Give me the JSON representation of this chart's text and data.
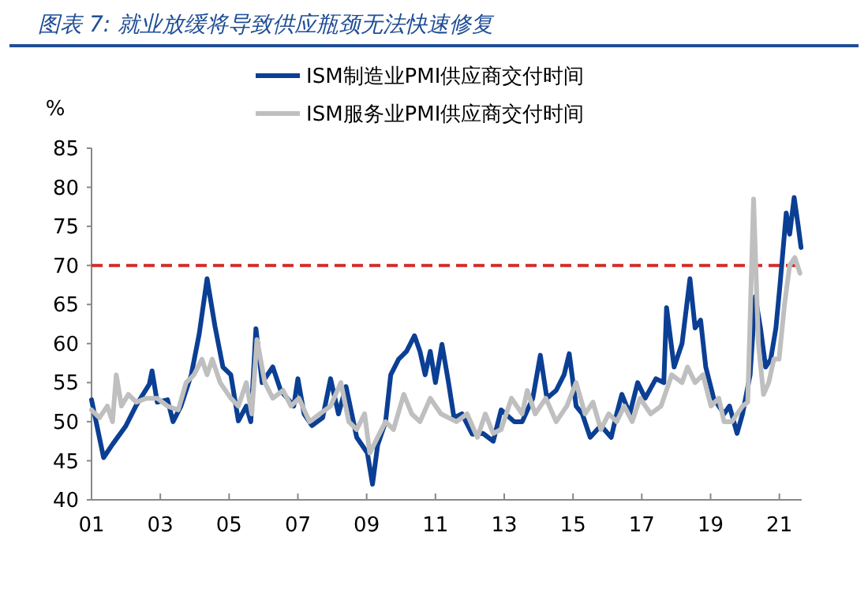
{
  "chart_data": {
    "type": "line",
    "title": "图表 7: 就业放缓将导致供应瓶颈无法快速修复",
    "ylabel": "%",
    "legend": "top",
    "grid": false,
    "line_style": "solid",
    "xlim": [
      2001,
      2021.65
    ],
    "xticks": [
      {
        "value": 2001,
        "label": "01"
      },
      {
        "value": 2003,
        "label": "03"
      },
      {
        "value": 2005,
        "label": "05"
      },
      {
        "value": 2007,
        "label": "07"
      },
      {
        "value": 2009,
        "label": "09"
      },
      {
        "value": 2011,
        "label": "11"
      },
      {
        "value": 2013,
        "label": "13"
      },
      {
        "value": 2015,
        "label": "15"
      },
      {
        "value": 2017,
        "label": "17"
      },
      {
        "value": 2019,
        "label": "19"
      },
      {
        "value": 2021,
        "label": "21"
      }
    ],
    "ylim": [
      40,
      85
    ],
    "yticks": [
      40,
      45,
      50,
      55,
      60,
      65,
      70,
      75,
      80,
      85
    ],
    "ref_lines": [
      {
        "axis": "y",
        "value": 70,
        "color": "#d42a2a",
        "line_style": "dashed"
      }
    ],
    "series": [
      {
        "name": "ISM制造业PMI供应商交付时间",
        "color": "#0b3f94",
        "x": [
          2001.0,
          2001.35,
          2001.61,
          2001.99,
          2002.3,
          2002.68,
          2002.76,
          2002.91,
          2003.21,
          2003.37,
          2003.6,
          2003.9,
          2004.13,
          2004.36,
          2004.59,
          2004.82,
          2005.05,
          2005.27,
          2005.5,
          2005.63,
          2005.78,
          2005.96,
          2006.27,
          2006.5,
          2006.88,
          2007.0,
          2007.18,
          2007.41,
          2007.72,
          2007.95,
          2008.18,
          2008.4,
          2008.71,
          2009.02,
          2009.17,
          2009.32,
          2009.55,
          2009.7,
          2009.93,
          2010.16,
          2010.39,
          2010.55,
          2010.7,
          2010.85,
          2011.0,
          2011.19,
          2011.38,
          2011.54,
          2011.77,
          2012.07,
          2012.38,
          2012.68,
          2012.91,
          2013.29,
          2013.52,
          2013.83,
          2014.05,
          2014.24,
          2014.51,
          2014.74,
          2014.89,
          2015.09,
          2015.27,
          2015.5,
          2015.81,
          2016.11,
          2016.27,
          2016.42,
          2016.65,
          2016.88,
          2017.1,
          2017.41,
          2017.64,
          2017.72,
          2017.94,
          2018.17,
          2018.4,
          2018.55,
          2018.71,
          2018.86,
          2019.09,
          2019.39,
          2019.55,
          2019.77,
          2019.93,
          2020.15,
          2020.3,
          2020.45,
          2020.6,
          2020.75,
          2020.9,
          2021.02,
          2021.2,
          2021.3,
          2021.43,
          2021.55,
          2021.63
        ],
        "values": [
          52.8,
          45.4,
          47.1,
          49.4,
          52.1,
          54.8,
          56.5,
          52.5,
          52.8,
          50,
          52,
          56,
          61.2,
          68.3,
          62.2,
          57,
          56,
          50.1,
          52,
          50,
          61.9,
          55,
          57,
          54,
          52,
          55.5,
          51,
          49.5,
          50.5,
          55.5,
          51,
          54.5,
          48,
          46,
          42,
          47,
          50,
          56,
          58,
          59,
          61,
          59,
          56,
          59,
          55,
          59.9,
          55,
          50.5,
          51,
          48.4,
          48.5,
          47.5,
          51.5,
          50,
          50,
          53,
          58.5,
          53,
          54,
          56,
          58.7,
          52,
          51,
          48,
          49.5,
          48,
          51,
          53.5,
          51,
          55,
          53,
          55.5,
          55,
          64.6,
          57,
          60,
          68.3,
          62,
          63,
          57,
          53,
          51,
          52,
          48.5,
          51,
          56,
          66,
          62,
          57,
          58,
          62,
          67.6,
          76.7,
          74,
          78.7,
          75,
          72.3
        ]
      },
      {
        "name": "ISM服务业PMI供应商交付时间",
        "color": "#bfbfbf",
        "x": [
          2001.0,
          2001.23,
          2001.46,
          2001.61,
          2001.72,
          2001.87,
          2002.07,
          2002.3,
          2002.6,
          2002.91,
          2003.21,
          2003.52,
          2003.75,
          2003.98,
          2004.21,
          2004.36,
          2004.51,
          2004.74,
          2005.05,
          2005.27,
          2005.5,
          2005.66,
          2005.81,
          2006.04,
          2006.27,
          2006.57,
          2006.8,
          2007.03,
          2007.34,
          2007.64,
          2007.95,
          2008.25,
          2008.48,
          2008.71,
          2008.94,
          2009.09,
          2009.32,
          2009.55,
          2009.78,
          2010.08,
          2010.31,
          2010.55,
          2010.85,
          2011.16,
          2011.61,
          2011.92,
          2012.22,
          2012.45,
          2012.68,
          2012.91,
          2013.21,
          2013.52,
          2013.67,
          2013.9,
          2014.21,
          2014.51,
          2014.82,
          2015.09,
          2015.35,
          2015.58,
          2015.81,
          2016.04,
          2016.27,
          2016.49,
          2016.72,
          2016.95,
          2017.26,
          2017.56,
          2017.87,
          2018.17,
          2018.33,
          2018.55,
          2018.78,
          2019.01,
          2019.24,
          2019.39,
          2019.62,
          2019.93,
          2020.08,
          2020.25,
          2020.39,
          2020.54,
          2020.69,
          2020.84,
          2020.99,
          2021.15,
          2021.3,
          2021.45,
          2021.6
        ],
        "values": [
          51.5,
          50.5,
          52,
          50,
          56,
          52,
          53.5,
          52.5,
          53,
          53,
          52,
          51.5,
          55,
          56,
          58,
          56,
          58,
          55,
          53,
          52,
          55,
          51,
          60.5,
          55,
          53,
          54,
          52,
          53,
          50,
          51,
          52,
          55,
          50,
          49,
          51,
          46,
          48,
          50,
          49,
          53.5,
          51,
          50,
          53,
          51,
          50,
          51,
          48,
          51,
          48.5,
          49,
          53,
          51,
          54,
          51,
          53,
          50,
          52,
          55,
          51,
          52.5,
          49,
          51,
          50,
          52,
          50,
          53,
          51,
          52,
          56,
          55,
          57,
          55,
          56,
          52,
          53,
          50,
          50,
          52,
          52.5,
          78.5,
          60,
          53.5,
          55,
          58,
          58,
          65,
          70,
          71,
          69
        ]
      }
    ]
  }
}
